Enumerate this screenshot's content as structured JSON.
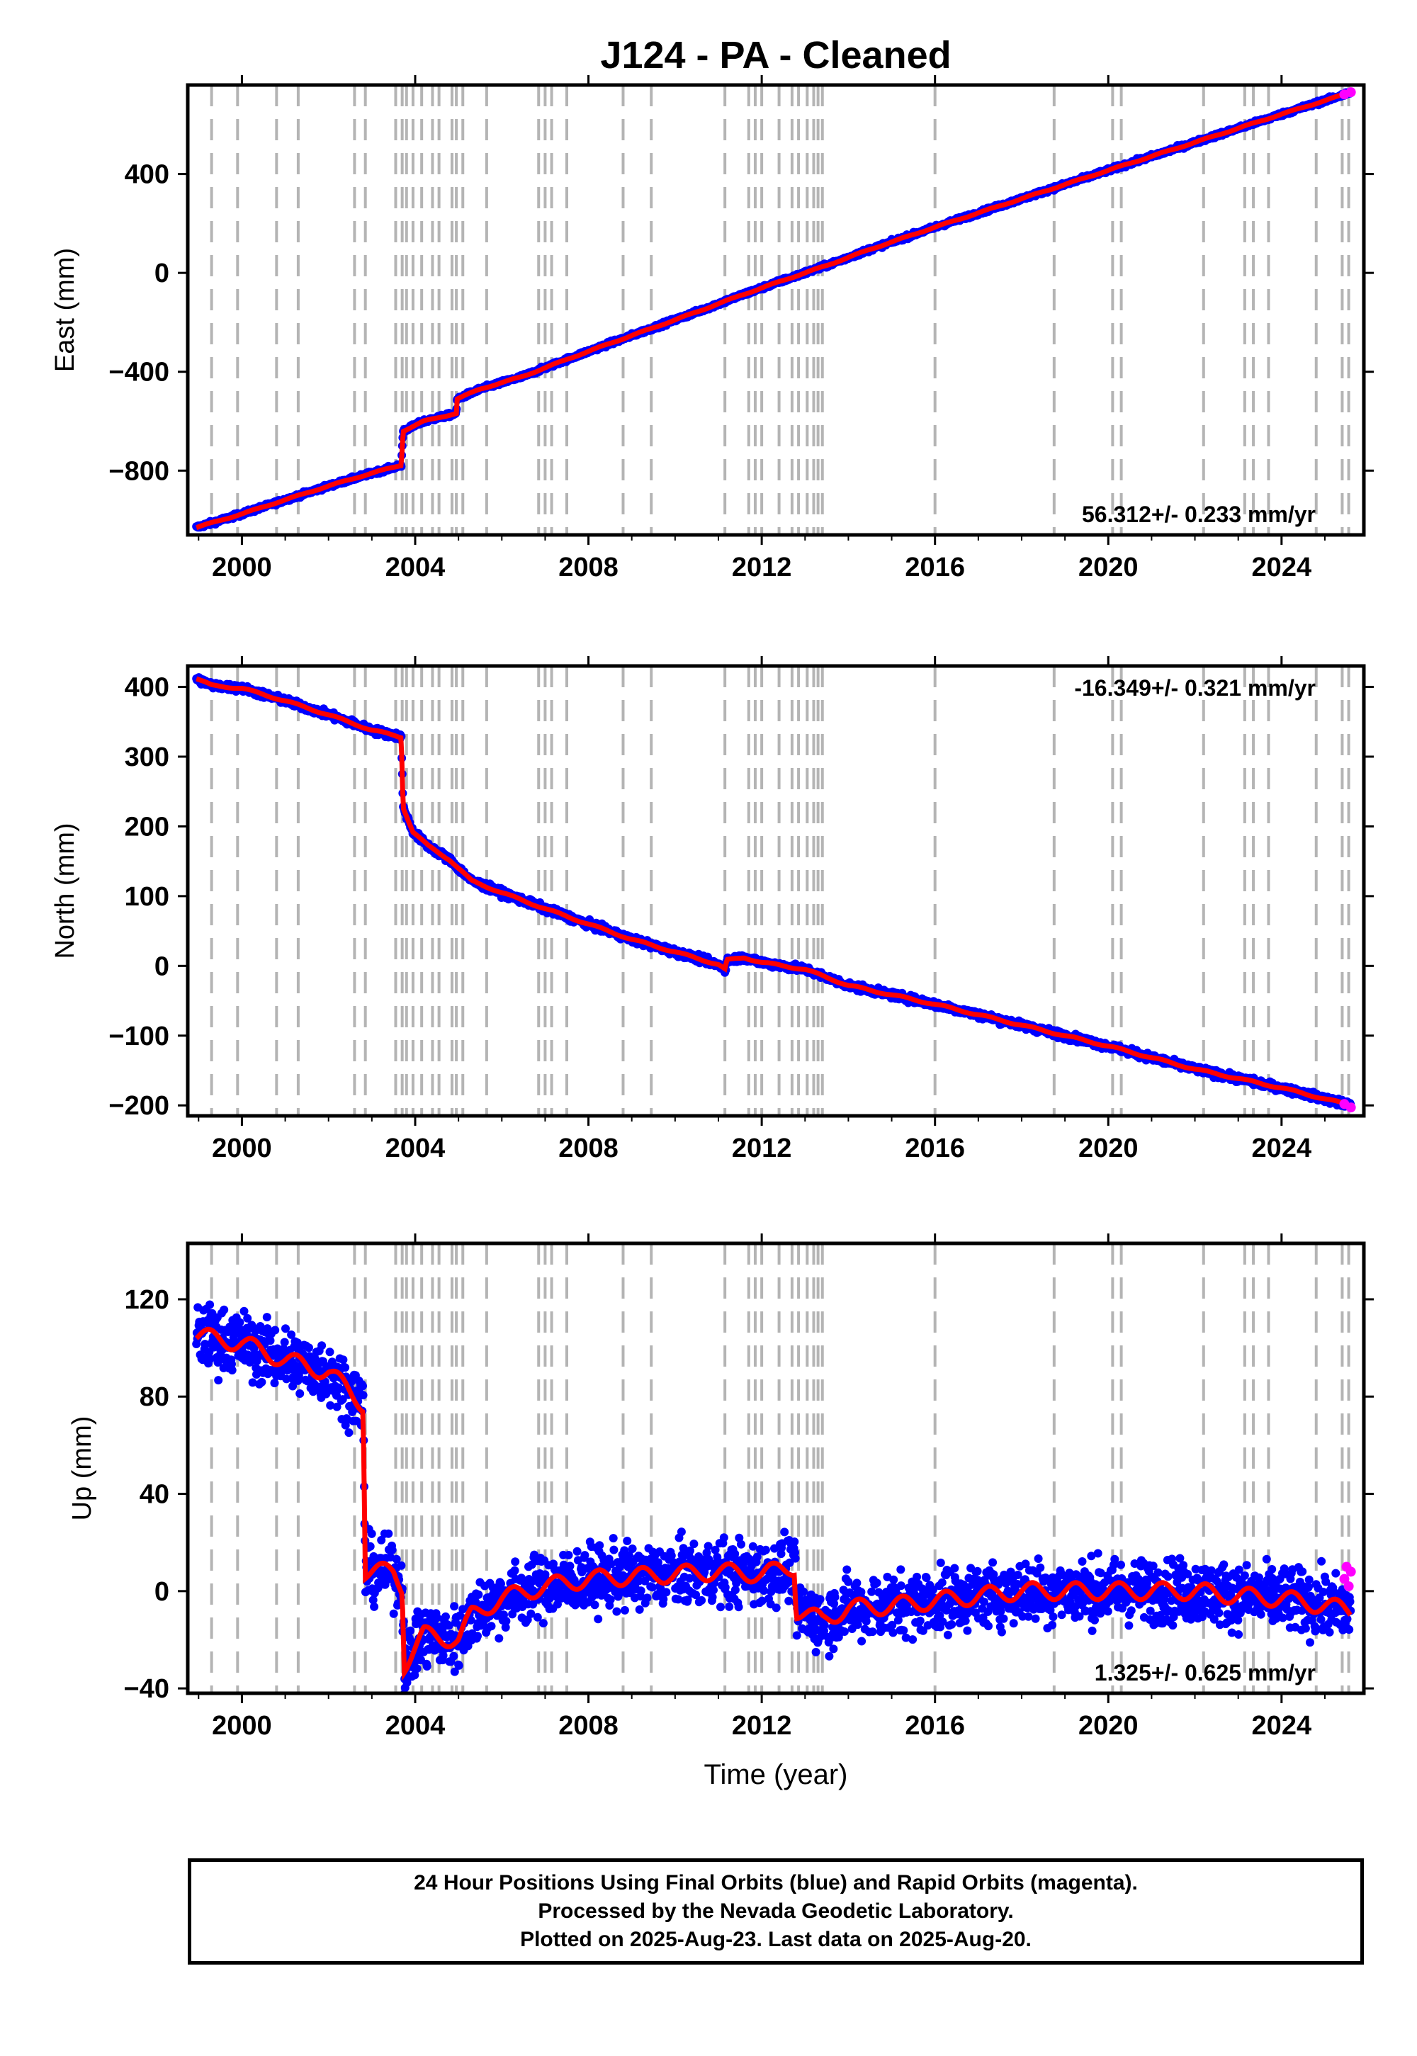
{
  "title": "J124  - PA - Cleaned",
  "x_axis_label": "Time (year)",
  "footer": {
    "line1": "24 Hour Positions Using Final Orbits (blue) and Rapid Orbits (magenta).",
    "line2": "Processed by the Nevada Geodetic Laboratory.",
    "line3": "Plotted on 2025-Aug-23. Last data on 2025-Aug-20."
  },
  "colors": {
    "final": "#0000ff",
    "rapid": "#ff00ff",
    "model": "#ff0000",
    "event_lines": "#b4b4b4"
  },
  "chart_data": {
    "type": "scatter",
    "xlim": [
      1998.75,
      2025.9
    ],
    "x_ticks": [
      2000,
      2004,
      2008,
      2012,
      2016,
      2020,
      2024
    ],
    "event_lines": [
      1999.3,
      1999.9,
      2000.8,
      2001.3,
      2002.6,
      2002.85,
      2003.55,
      2003.7,
      2003.8,
      2003.95,
      2004.15,
      2004.4,
      2004.55,
      2004.85,
      2004.95,
      2005.1,
      2005.65,
      2006.85,
      2007.0,
      2007.15,
      2007.5,
      2008.8,
      2009.45,
      2011.15,
      2011.7,
      2011.85,
      2012.0,
      2012.4,
      2012.7,
      2012.85,
      2013.05,
      2013.2,
      2013.3,
      2013.4,
      2016.0,
      2018.75,
      2020.1,
      2020.3,
      2022.2,
      2023.15,
      2023.35,
      2023.7,
      2024.8,
      2025.4,
      2025.55
    ],
    "panels": [
      {
        "name": "east",
        "ylabel": "East (mm)",
        "ylim": [
          -1060,
          760
        ],
        "y_ticks": [
          -800,
          -400,
          0,
          400
        ],
        "rate_label": "56.312+/- 0.233 mm/yr",
        "rate_position": "bottom-right",
        "trend": [
          [
            1998.95,
            -1030
          ],
          [
            2000.0,
            -975
          ],
          [
            2001.0,
            -918
          ],
          [
            2002.0,
            -862
          ],
          [
            2003.0,
            -810
          ],
          [
            2003.68,
            -778
          ],
          [
            2003.72,
            -640
          ],
          [
            2004.2,
            -600
          ],
          [
            2004.95,
            -568
          ],
          [
            2004.97,
            -510
          ],
          [
            2005.5,
            -470
          ],
          [
            2006.5,
            -418
          ],
          [
            2007.5,
            -350
          ],
          [
            2008.5,
            -285
          ],
          [
            2009.5,
            -222
          ],
          [
            2010.5,
            -158
          ],
          [
            2011.5,
            -92
          ],
          [
            2012.5,
            -30
          ],
          [
            2013.5,
            30
          ],
          [
            2014.5,
            95
          ],
          [
            2016.0,
            185
          ],
          [
            2018.0,
            300
          ],
          [
            2020.0,
            415
          ],
          [
            2022.0,
            528
          ],
          [
            2024.0,
            642
          ],
          [
            2025.6,
            730
          ]
        ],
        "rapid": [
          [
            2025.45,
            722
          ],
          [
            2025.6,
            731
          ]
        ]
      },
      {
        "name": "north",
        "ylabel": "North (mm)",
        "ylim": [
          -215,
          430
        ],
        "y_ticks": [
          -200,
          -100,
          0,
          100,
          200,
          300,
          400
        ],
        "rate_label": "-16.349+/- 0.321 mm/yr",
        "rate_position": "top-right",
        "trend": [
          [
            1998.95,
            412
          ],
          [
            1999.3,
            402
          ],
          [
            2000.0,
            398
          ],
          [
            2001.0,
            380
          ],
          [
            2002.0,
            360
          ],
          [
            2003.0,
            338
          ],
          [
            2003.68,
            328
          ],
          [
            2003.72,
            228
          ],
          [
            2003.95,
            192
          ],
          [
            2004.3,
            172
          ],
          [
            2004.8,
            152
          ],
          [
            2005.3,
            122
          ],
          [
            2006.0,
            105
          ],
          [
            2007.0,
            82
          ],
          [
            2008.0,
            60
          ],
          [
            2009.0,
            38
          ],
          [
            2010.0,
            20
          ],
          [
            2011.0,
            2
          ],
          [
            2011.15,
            -5
          ],
          [
            2011.2,
            8
          ],
          [
            2011.6,
            12
          ],
          [
            2012.0,
            5
          ],
          [
            2013.0,
            -5
          ],
          [
            2014.0,
            -28
          ],
          [
            2016.0,
            -55
          ],
          [
            2018.0,
            -85
          ],
          [
            2020.0,
            -115
          ],
          [
            2022.0,
            -148
          ],
          [
            2024.0,
            -175
          ],
          [
            2025.6,
            -200
          ]
        ],
        "rapid": [
          [
            2025.45,
            -198
          ],
          [
            2025.6,
            -203
          ]
        ]
      },
      {
        "name": "up",
        "ylabel": "Up (mm)",
        "ylim": [
          -42,
          143
        ],
        "y_ticks": [
          -40,
          0,
          40,
          80,
          120
        ],
        "rate_label": "1.325+/- 0.625 mm/yr",
        "rate_position": "bottom-right",
        "trend": [
          [
            1998.95,
            105
          ],
          [
            2000.0,
            102
          ],
          [
            2001.0,
            95
          ],
          [
            2002.0,
            90
          ],
          [
            2002.8,
            77
          ],
          [
            2002.85,
            8
          ],
          [
            2003.5,
            8
          ],
          [
            2003.7,
            2
          ],
          [
            2003.75,
            -30
          ],
          [
            2004.2,
            -18
          ],
          [
            2005.0,
            -20
          ],
          [
            2005.3,
            -10
          ],
          [
            2006.0,
            -3
          ],
          [
            2007.0,
            2
          ],
          [
            2008.0,
            5
          ],
          [
            2009.0,
            6
          ],
          [
            2010.0,
            7
          ],
          [
            2011.0,
            8
          ],
          [
            2012.0,
            7
          ],
          [
            2012.75,
            10
          ],
          [
            2012.8,
            -8
          ],
          [
            2013.4,
            -12
          ],
          [
            2014.0,
            -7
          ],
          [
            2015.0,
            -6
          ],
          [
            2016.0,
            -4
          ],
          [
            2017.0,
            -2
          ],
          [
            2018.0,
            0
          ],
          [
            2019.0,
            0
          ],
          [
            2020.0,
            0
          ],
          [
            2021.0,
            0
          ],
          [
            2022.0,
            0
          ],
          [
            2023.0,
            -2
          ],
          [
            2024.0,
            -3
          ],
          [
            2025.0,
            -6
          ],
          [
            2025.6,
            -8
          ]
        ],
        "rapid": [
          [
            2025.45,
            5
          ],
          [
            2025.5,
            10
          ],
          [
            2025.55,
            2
          ],
          [
            2025.6,
            8
          ]
        ]
      }
    ]
  }
}
